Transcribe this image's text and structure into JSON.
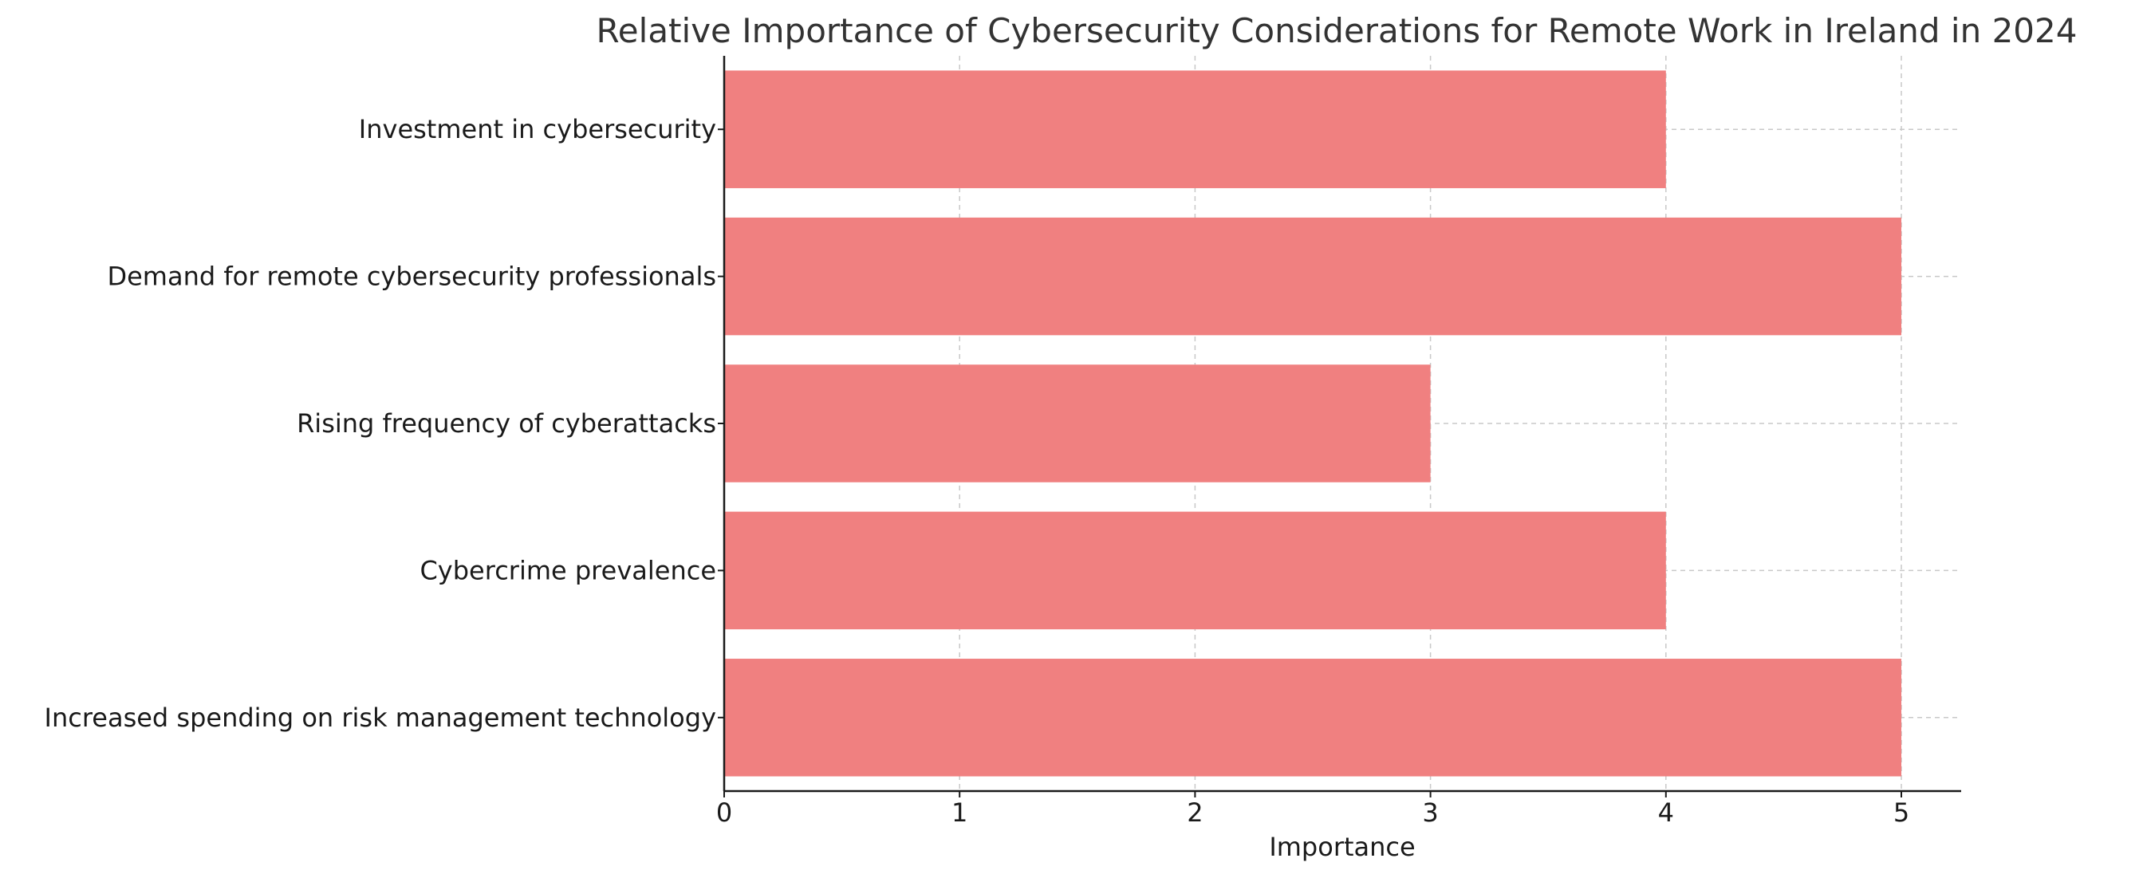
{
  "chart_data": {
    "type": "bar",
    "orientation": "horizontal",
    "title": "Relative Importance of Cybersecurity Considerations for Remote Work in Ireland in 2024",
    "xlabel": "Importance",
    "ylabel": "",
    "categories": [
      "Investment in cybersecurity",
      "Demand for remote cybersecurity professionals",
      "Rising frequency of cyberattacks",
      "Cybercrime prevalence",
      "Increased spending on risk management technology"
    ],
    "values": [
      4,
      5,
      3,
      4,
      5
    ],
    "xlim": [
      0,
      5.25
    ],
    "x_ticks": [
      0,
      1,
      2,
      3,
      4,
      5
    ],
    "grid": true,
    "bar_color": "#f08080"
  }
}
